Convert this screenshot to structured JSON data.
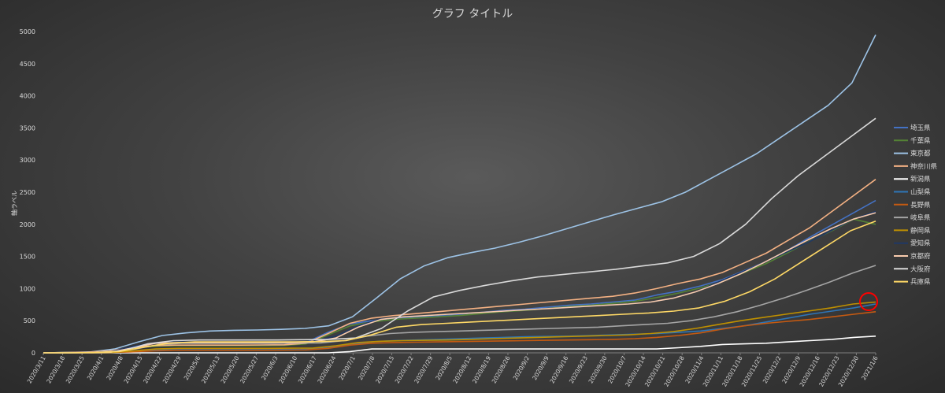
{
  "chart_data": {
    "type": "line",
    "title": "グラフ タイトル",
    "xlabel": "",
    "ylabel": "軸ラベル",
    "ylim": [
      0,
      5000
    ],
    "yticks": [
      0,
      500,
      1000,
      1500,
      2000,
      2500,
      3000,
      3500,
      4000,
      4500,
      5000
    ],
    "x_tick_labels": [
      "2020/3/11",
      "2020/3/18",
      "2020/3/25",
      "2020/4/1",
      "2020/4/8",
      "2020/4/15",
      "2020/4/22",
      "2020/4/29",
      "2020/5/6",
      "2020/5/13",
      "2020/5/20",
      "2020/5/27",
      "2020/6/3",
      "2020/6/10",
      "2020/6/17",
      "2020/6/24",
      "2020/7/1",
      "2020/7/8",
      "2020/7/15",
      "2020/7/22",
      "2020/7/29",
      "2020/8/5",
      "2020/8/12",
      "2020/8/19",
      "2020/8/26",
      "2020/9/2",
      "2020/9/9",
      "2020/9/16",
      "2020/9/23",
      "2020/9/30",
      "2020/10/7",
      "2020/10/14",
      "2020/10/21",
      "2020/10/28",
      "2020/11/4",
      "2020/11/11",
      "2020/11/18",
      "2020/11/25",
      "2020/12/2",
      "2020/12/9",
      "2020/12/16",
      "2020/12/23",
      "2020/12/30",
      "2021/1/6"
    ],
    "grid": false,
    "legend_position": "right",
    "series": [
      {
        "name": "埼玉県",
        "color": "#4472c4",
        "values": [
          0,
          5,
          10,
          30,
          80,
          110,
          115,
          115,
          115,
          115,
          120,
          125,
          160,
          320,
          450,
          500,
          540,
          560,
          580,
          600,
          630,
          660,
          680,
          710,
          740,
          760,
          790,
          820,
          900,
          960,
          1040,
          1140,
          1280,
          1420,
          1600,
          1800,
          1990,
          2180,
          2370
        ]
      },
      {
        "name": "千葉県",
        "color": "#548235",
        "values": [
          0,
          5,
          10,
          30,
          70,
          100,
          110,
          110,
          110,
          110,
          112,
          115,
          140,
          280,
          420,
          480,
          520,
          540,
          560,
          580,
          610,
          640,
          660,
          690,
          720,
          740,
          770,
          800,
          860,
          930,
          1010,
          1110,
          1250,
          1390,
          1560,
          1740,
          1900,
          2080,
          2000
        ]
      },
      {
        "name": "東京都",
        "color": "#9dc3e6",
        "values": [
          0,
          5,
          15,
          60,
          170,
          270,
          310,
          340,
          350,
          355,
          365,
          380,
          420,
          560,
          850,
          1150,
          1350,
          1480,
          1560,
          1630,
          1720,
          1820,
          1930,
          2040,
          2150,
          2250,
          2350,
          2500,
          2700,
          2900,
          3100,
          3350,
          3600,
          3850,
          4200,
          4950
        ]
      },
      {
        "name": "神奈川県",
        "color": "#f4b183",
        "values": [
          0,
          5,
          10,
          30,
          80,
          110,
          120,
          120,
          120,
          120,
          122,
          125,
          150,
          300,
          460,
          540,
          580,
          610,
          640,
          670,
          700,
          730,
          760,
          790,
          820,
          850,
          880,
          930,
          1000,
          1080,
          1150,
          1250,
          1400,
          1550,
          1750,
          1950,
          2200,
          2450,
          2700
        ]
      },
      {
        "name": "新潟県",
        "color": "#ffffff",
        "values": [
          0,
          0,
          0,
          0,
          0,
          0,
          0,
          0,
          0,
          0,
          0,
          0,
          0,
          0,
          20,
          60,
          60,
          60,
          60,
          60,
          60,
          60,
          60,
          60,
          60,
          60,
          60,
          60,
          60,
          80,
          100,
          130,
          140,
          150,
          170,
          190,
          210,
          240,
          260
        ]
      },
      {
        "name": "山梨県",
        "color": "#2e75b6",
        "values": [
          0,
          0,
          0,
          5,
          20,
          40,
          50,
          50,
          50,
          50,
          50,
          52,
          55,
          80,
          130,
          170,
          190,
          200,
          210,
          220,
          230,
          240,
          250,
          255,
          260,
          270,
          280,
          290,
          300,
          320,
          340,
          380,
          420,
          480,
          540,
          600,
          650,
          700,
          760
        ]
      },
      {
        "name": "長野県",
        "color": "#c55a11",
        "values": [
          0,
          0,
          0,
          5,
          15,
          30,
          40,
          40,
          40,
          40,
          40,
          42,
          45,
          70,
          120,
          150,
          160,
          165,
          170,
          175,
          180,
          185,
          190,
          195,
          200,
          205,
          210,
          220,
          240,
          270,
          310,
          370,
          420,
          460,
          490,
          520,
          560,
          600,
          640
        ]
      },
      {
        "name": "岐阜県",
        "color": "#a5a5a5",
        "values": [
          0,
          0,
          0,
          10,
          60,
          130,
          150,
          150,
          150,
          150,
          150,
          152,
          155,
          190,
          260,
          300,
          320,
          330,
          340,
          350,
          360,
          370,
          380,
          390,
          400,
          420,
          440,
          460,
          500,
          560,
          640,
          740,
          850,
          970,
          1100,
          1240,
          1360
        ]
      },
      {
        "name": "静岡県",
        "color": "#bf9000",
        "values": [
          0,
          0,
          0,
          5,
          30,
          60,
          70,
          70,
          70,
          70,
          70,
          72,
          75,
          110,
          160,
          180,
          190,
          195,
          200,
          210,
          220,
          230,
          240,
          250,
          260,
          270,
          280,
          300,
          330,
          380,
          440,
          500,
          550,
          600,
          650,
          700,
          760,
          790
        ]
      },
      {
        "name": "愛知県",
        "color": "#203864",
        "values": [
          0,
          0,
          0,
          20,
          100,
          160,
          170,
          170,
          170,
          170,
          170,
          172,
          180,
          260,
          420,
          530,
          560,
          580,
          600,
          620,
          640,
          660,
          680,
          700,
          720,
          740,
          760,
          790,
          850,
          950,
          1100,
          1250,
          1400,
          1560,
          1720,
          1900,
          2080,
          2200
        ]
      },
      {
        "name": "京都府",
        "color": "#f8cbad",
        "values": [
          0,
          0,
          0,
          10,
          80,
          150,
          160,
          160,
          160,
          160,
          160,
          162,
          170,
          230,
          400,
          520,
          560,
          580,
          600,
          620,
          640,
          660,
          680,
          700,
          720,
          740,
          760,
          790,
          850,
          950,
          1080,
          1230,
          1400,
          1580,
          1760,
          1930,
          2080,
          2180
        ]
      },
      {
        "name": "大阪府",
        "color": "#d9d9d9",
        "values": [
          0,
          0,
          5,
          30,
          140,
          190,
          200,
          200,
          200,
          200,
          205,
          210,
          230,
          380,
          650,
          870,
          970,
          1050,
          1120,
          1180,
          1220,
          1260,
          1300,
          1350,
          1400,
          1500,
          1700,
          2000,
          2400,
          2750,
          3050,
          3350,
          3650
        ]
      },
      {
        "name": "兵庫県",
        "color": "#ffd966",
        "values": [
          0,
          0,
          5,
          20,
          90,
          150,
          170,
          170,
          170,
          170,
          172,
          175,
          190,
          280,
          400,
          440,
          460,
          480,
          500,
          520,
          540,
          560,
          580,
          600,
          620,
          650,
          700,
          800,
          950,
          1150,
          1400,
          1650,
          1900,
          2050
        ]
      }
    ]
  }
}
